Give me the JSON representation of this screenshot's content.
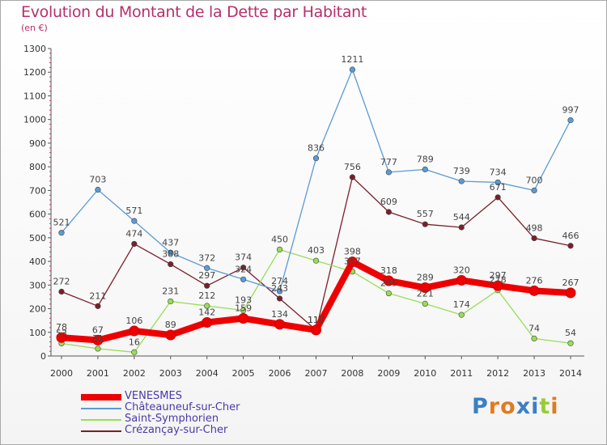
{
  "title": "Evolution du Montant de la Dette par Habitant",
  "subtitle": "(en €)",
  "logo": "Proxiti",
  "chart_data": {
    "type": "line",
    "x": [
      "2000",
      "2001",
      "2002",
      "2003",
      "2004",
      "2005",
      "2006",
      "2007",
      "2008",
      "2009",
      "2010",
      "2011",
      "2012",
      "2013",
      "2014"
    ],
    "ylim": [
      0,
      1300
    ],
    "yticks": [
      0,
      100,
      200,
      300,
      400,
      500,
      600,
      700,
      800,
      900,
      1000,
      1100,
      1200,
      1300
    ],
    "grid": false,
    "legend_position": "bottom-left",
    "series": [
      {
        "name": "VENESMES",
        "color": "#ee0000",
        "values": [
          78,
          67,
          106,
          89,
          142,
          159,
          134,
          110,
          398,
          318,
          289,
          320,
          297,
          276,
          267
        ]
      },
      {
        "name": "Châteauneuf-sur-Cher",
        "color": "#5b9bd5",
        "values": [
          521,
          703,
          571,
          437,
          372,
          324,
          274,
          836,
          1211,
          777,
          789,
          739,
          734,
          700,
          997
        ]
      },
      {
        "name": "Saint-Symphorien",
        "color": "#99dd55",
        "values": [
          53,
          31,
          16,
          231,
          212,
          193,
          450,
          403,
          357,
          265,
          221,
          174,
          278,
          74,
          54
        ]
      },
      {
        "name": "Crézançay-sur-Cher",
        "color": "#7a1f2a",
        "values": [
          272,
          211,
          474,
          388,
          297,
          374,
          243,
          110,
          756,
          609,
          557,
          544,
          671,
          498,
          466
        ]
      }
    ]
  }
}
